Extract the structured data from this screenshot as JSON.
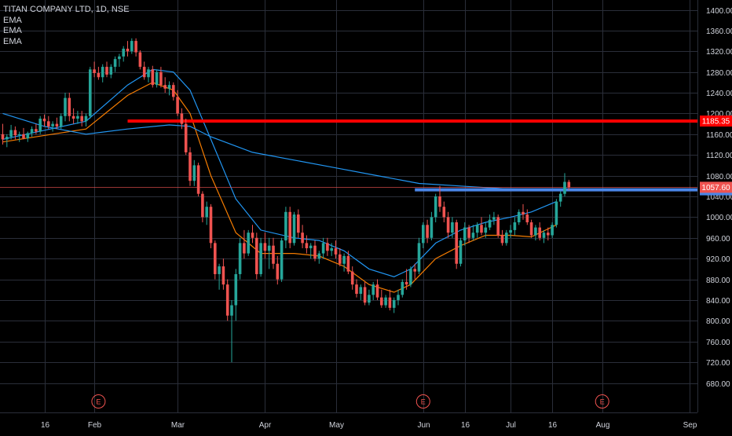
{
  "legend": {
    "symbol": "TITAN COMPANY LTD, 1D, NSE",
    "indicators": [
      "EMA",
      "EMA",
      "EMA"
    ]
  },
  "colors": {
    "background": "#000000",
    "up": "#26a69a",
    "down": "#ef5350",
    "ema_fast": "#f57c00",
    "ema_mid": "#2196f3",
    "ema_slow": "#2196f3",
    "resistance": "#ff0000",
    "support": "#4a86e8",
    "grid": "#2a2e39",
    "axis_text": "#d1d4dc",
    "current_price": "#ef5350",
    "earnings": "#ef5350"
  },
  "chart_data": {
    "type": "candlestick",
    "title": "TITAN COMPANY LTD, 1D, NSE",
    "ylim": [
      660,
      1420
    ],
    "y_ticks": [
      680,
      720,
      760,
      800,
      840,
      880,
      920,
      960,
      1000,
      1040,
      1080,
      1120,
      1160,
      1200,
      1240,
      1280,
      1320,
      1360,
      1400
    ],
    "y_tick_labels": [
      "680.00",
      "720.00",
      "760.00",
      "800.00",
      "840.00",
      "880.00",
      "920.00",
      "960.00",
      "1000.00",
      "1040.00",
      "1080.00",
      "1120.00",
      "1160.00",
      "1200.00",
      "1240.00",
      "1280.00",
      "1320.00",
      "1360.00",
      "1400.00"
    ],
    "x_labels": [
      {
        "label": "16",
        "bar": 10
      },
      {
        "label": "Feb",
        "bar": 22
      },
      {
        "label": "Mar",
        "bar": 42
      },
      {
        "label": "Apr",
        "bar": 63
      },
      {
        "label": "May",
        "bar": 80
      },
      {
        "label": "Jun",
        "bar": 101
      },
      {
        "label": "16",
        "bar": 111
      },
      {
        "label": "Jul",
        "bar": 122
      },
      {
        "label": "16",
        "bar": 132
      },
      {
        "label": "Aug",
        "bar": 144
      },
      {
        "label": "Sep",
        "bar": 165
      }
    ],
    "bars_total": 176,
    "grid": true,
    "candles": [
      [
        1160,
        1180,
        1140,
        1150
      ],
      [
        1150,
        1160,
        1135,
        1155
      ],
      [
        1155,
        1178,
        1150,
        1168
      ],
      [
        1168,
        1175,
        1150,
        1158
      ],
      [
        1158,
        1165,
        1145,
        1160
      ],
      [
        1160,
        1172,
        1150,
        1152
      ],
      [
        1152,
        1165,
        1145,
        1162
      ],
      [
        1162,
        1175,
        1155,
        1170
      ],
      [
        1170,
        1180,
        1160,
        1165
      ],
      [
        1165,
        1195,
        1160,
        1190
      ],
      [
        1190,
        1198,
        1175,
        1185
      ],
      [
        1185,
        1195,
        1170,
        1175
      ],
      [
        1175,
        1185,
        1165,
        1180
      ],
      [
        1180,
        1192,
        1170,
        1175
      ],
      [
        1175,
        1200,
        1170,
        1195
      ],
      [
        1195,
        1240,
        1185,
        1230
      ],
      [
        1230,
        1240,
        1185,
        1195
      ],
      [
        1195,
        1210,
        1180,
        1190
      ],
      [
        1190,
        1205,
        1180,
        1195
      ],
      [
        1195,
        1205,
        1175,
        1185
      ],
      [
        1185,
        1200,
        1175,
        1195
      ],
      [
        1195,
        1290,
        1190,
        1285
      ],
      [
        1285,
        1300,
        1270,
        1278
      ],
      [
        1278,
        1290,
        1265,
        1270
      ],
      [
        1270,
        1295,
        1260,
        1290
      ],
      [
        1290,
        1300,
        1270,
        1275
      ],
      [
        1275,
        1295,
        1268,
        1290
      ],
      [
        1290,
        1310,
        1280,
        1305
      ],
      [
        1305,
        1315,
        1290,
        1310
      ],
      [
        1310,
        1330,
        1300,
        1325
      ],
      [
        1325,
        1340,
        1310,
        1320
      ],
      [
        1320,
        1345,
        1315,
        1340
      ],
      [
        1340,
        1345,
        1310,
        1318
      ],
      [
        1318,
        1322,
        1285,
        1290
      ],
      [
        1290,
        1300,
        1265,
        1270
      ],
      [
        1270,
        1290,
        1260,
        1285
      ],
      [
        1285,
        1292,
        1250,
        1255
      ],
      [
        1255,
        1285,
        1250,
        1280
      ],
      [
        1280,
        1290,
        1250,
        1255
      ],
      [
        1255,
        1270,
        1240,
        1248
      ],
      [
        1248,
        1262,
        1235,
        1255
      ],
      [
        1255,
        1260,
        1225,
        1232
      ],
      [
        1232,
        1245,
        1195,
        1200
      ],
      [
        1200,
        1210,
        1170,
        1180
      ],
      [
        1180,
        1190,
        1120,
        1125
      ],
      [
        1125,
        1135,
        1060,
        1070
      ],
      [
        1070,
        1110,
        1060,
        1100
      ],
      [
        1100,
        1105,
        1040,
        1045
      ],
      [
        1045,
        1050,
        990,
        1000
      ],
      [
        1000,
        1030,
        985,
        1020
      ],
      [
        1020,
        1025,
        940,
        950
      ],
      [
        950,
        955,
        880,
        890
      ],
      [
        890,
        910,
        860,
        905
      ],
      [
        905,
        920,
        860,
        870
      ],
      [
        870,
        880,
        800,
        810
      ],
      [
        810,
        840,
        720,
        830
      ],
      [
        830,
        900,
        800,
        890
      ],
      [
        890,
        960,
        880,
        950
      ],
      [
        950,
        975,
        920,
        930
      ],
      [
        930,
        975,
        925,
        970
      ],
      [
        970,
        985,
        950,
        960
      ],
      [
        960,
        970,
        880,
        890
      ],
      [
        890,
        960,
        885,
        950
      ],
      [
        950,
        970,
        920,
        935
      ],
      [
        935,
        960,
        900,
        945
      ],
      [
        945,
        960,
        900,
        910
      ],
      [
        910,
        925,
        870,
        880
      ],
      [
        880,
        960,
        875,
        955
      ],
      [
        955,
        1020,
        940,
        1010
      ],
      [
        1010,
        1020,
        940,
        950
      ],
      [
        950,
        1010,
        945,
        1005
      ],
      [
        1005,
        1015,
        960,
        970
      ],
      [
        970,
        985,
        940,
        950
      ],
      [
        950,
        965,
        930,
        940
      ],
      [
        940,
        950,
        920,
        945
      ],
      [
        945,
        955,
        915,
        920
      ],
      [
        920,
        935,
        910,
        930
      ],
      [
        930,
        960,
        920,
        950
      ],
      [
        950,
        960,
        925,
        935
      ],
      [
        935,
        950,
        925,
        940
      ],
      [
        940,
        955,
        920,
        928
      ],
      [
        928,
        940,
        905,
        910
      ],
      [
        910,
        930,
        895,
        925
      ],
      [
        925,
        935,
        890,
        895
      ],
      [
        895,
        905,
        860,
        870
      ],
      [
        870,
        880,
        845,
        852
      ],
      [
        852,
        870,
        840,
        865
      ],
      [
        865,
        875,
        830,
        835
      ],
      [
        835,
        860,
        830,
        850
      ],
      [
        850,
        875,
        840,
        870
      ],
      [
        870,
        880,
        840,
        845
      ],
      [
        845,
        860,
        825,
        830
      ],
      [
        830,
        850,
        825,
        845
      ],
      [
        845,
        860,
        820,
        825
      ],
      [
        825,
        845,
        815,
        840
      ],
      [
        840,
        860,
        830,
        850
      ],
      [
        850,
        880,
        845,
        875
      ],
      [
        875,
        900,
        860,
        870
      ],
      [
        870,
        905,
        865,
        900
      ],
      [
        900,
        910,
        880,
        895
      ],
      [
        895,
        960,
        890,
        950
      ],
      [
        950,
        990,
        940,
        985
      ],
      [
        985,
        995,
        950,
        960
      ],
      [
        960,
        1010,
        955,
        1000
      ],
      [
        1000,
        1045,
        990,
        1040
      ],
      [
        1040,
        1060,
        1010,
        1020
      ],
      [
        1020,
        1030,
        990,
        1000
      ],
      [
        1000,
        1010,
        960,
        970
      ],
      [
        970,
        1000,
        960,
        990
      ],
      [
        990,
        995,
        900,
        910
      ],
      [
        910,
        960,
        905,
        955
      ],
      [
        955,
        990,
        945,
        980
      ],
      [
        980,
        985,
        950,
        960
      ],
      [
        960,
        985,
        955,
        970
      ],
      [
        970,
        990,
        960,
        985
      ],
      [
        985,
        1000,
        965,
        970
      ],
      [
        970,
        990,
        960,
        980
      ],
      [
        980,
        1005,
        975,
        995
      ],
      [
        995,
        1010,
        985,
        1000
      ],
      [
        1000,
        1005,
        960,
        965
      ],
      [
        965,
        975,
        945,
        950
      ],
      [
        950,
        975,
        945,
        970
      ],
      [
        970,
        985,
        960,
        975
      ],
      [
        975,
        1000,
        965,
        990
      ],
      [
        990,
        1015,
        985,
        1010
      ],
      [
        1010,
        1025,
        995,
        1005
      ],
      [
        1005,
        1015,
        985,
        990
      ],
      [
        990,
        995,
        960,
        965
      ],
      [
        965,
        985,
        955,
        980
      ],
      [
        980,
        990,
        955,
        960
      ],
      [
        960,
        975,
        950,
        970
      ],
      [
        970,
        980,
        955,
        965
      ],
      [
        965,
        990,
        960,
        985
      ],
      [
        985,
        1035,
        980,
        1030
      ],
      [
        1030,
        1050,
        1020,
        1045
      ],
      [
        1045,
        1085,
        1040,
        1068
      ],
      [
        1068,
        1072,
        1052,
        1057.6
      ]
    ],
    "ema": [
      {
        "name": "EMA",
        "color": "#f57c00",
        "values": [
          [
            0,
            1145
          ],
          [
            20,
            1170
          ],
          [
            30,
            1235
          ],
          [
            36,
            1260
          ],
          [
            41,
            1245
          ],
          [
            45,
            1200
          ],
          [
            50,
            1080
          ],
          [
            56,
            970
          ],
          [
            62,
            930
          ],
          [
            70,
            930
          ],
          [
            76,
            925
          ],
          [
            82,
            905
          ],
          [
            88,
            870
          ],
          [
            94,
            855
          ],
          [
            98,
            870
          ],
          [
            104,
            920
          ],
          [
            110,
            945
          ],
          [
            116,
            965
          ],
          [
            122,
            965
          ],
          [
            127,
            962
          ],
          [
            133,
            985
          ]
        ]
      },
      {
        "name": "EMA",
        "color": "#2196f3",
        "values": [
          [
            0,
            1150
          ],
          [
            20,
            1185
          ],
          [
            30,
            1255
          ],
          [
            36,
            1285
          ],
          [
            41,
            1280
          ],
          [
            45,
            1245
          ],
          [
            50,
            1150
          ],
          [
            56,
            1035
          ],
          [
            62,
            975
          ],
          [
            70,
            960
          ],
          [
            76,
            955
          ],
          [
            82,
            935
          ],
          [
            88,
            900
          ],
          [
            94,
            885
          ],
          [
            98,
            900
          ],
          [
            104,
            950
          ],
          [
            110,
            975
          ],
          [
            116,
            990
          ],
          [
            122,
            1000
          ],
          [
            127,
            1010
          ],
          [
            133,
            1030
          ]
        ]
      },
      {
        "name": "EMA",
        "color": "#2196f3",
        "values": [
          [
            0,
            1200
          ],
          [
            10,
            1175
          ],
          [
            20,
            1160
          ],
          [
            30,
            1170
          ],
          [
            40,
            1178
          ],
          [
            45,
            1175
          ],
          [
            50,
            1155
          ],
          [
            60,
            1125
          ],
          [
            70,
            1110
          ],
          [
            80,
            1095
          ],
          [
            90,
            1080
          ],
          [
            100,
            1065
          ],
          [
            110,
            1060
          ],
          [
            120,
            1055
          ],
          [
            133,
            1052.7
          ]
        ]
      }
    ],
    "levels": [
      {
        "price": 1185.35,
        "label": "1185.35",
        "from_bar": 30,
        "color": "#ff0000",
        "style": "thick"
      },
      {
        "price": 1052.7,
        "label": "1052.70",
        "from_bar": 99,
        "color": "#4a86e8",
        "style": "thick"
      },
      {
        "price": 1057.6,
        "label": "1057.60",
        "from_bar": 0,
        "color": "#ef5350",
        "style": "thin"
      }
    ],
    "earnings": [
      {
        "bar": 23,
        "label": "E"
      },
      {
        "bar": 101,
        "label": "E"
      },
      {
        "bar": 144,
        "label": "E"
      }
    ]
  }
}
